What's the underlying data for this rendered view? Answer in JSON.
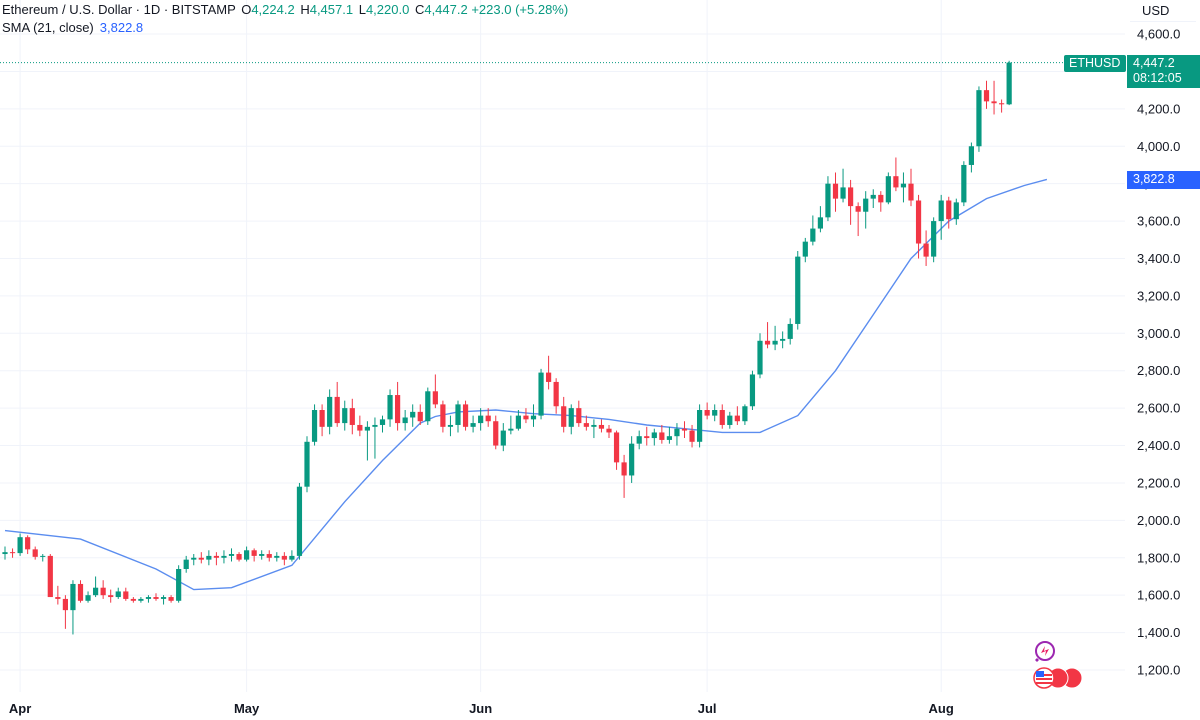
{
  "header": {
    "symbol": "Ethereum / U.S. Dollar · 1D · BITSTAMP",
    "open_label": "O",
    "open": "4,224.2",
    "high_label": "H",
    "high": "4,457.1",
    "low_label": "L",
    "low": "4,220.0",
    "close_label": "C",
    "close": "4,447.2",
    "change": "+223.0 (+5.28%)",
    "sma_label": "SMA (21, close)",
    "sma_value": "3,822.8"
  },
  "price_scale": {
    "currency": "USD"
  },
  "tags": {
    "symbol": "ETHUSD",
    "last_price": "4,447.2",
    "countdown": "08:12:05",
    "sma": "3,822.8"
  },
  "colors": {
    "up": "#089981",
    "down": "#f23645",
    "sma": "#5b8def",
    "grid": "#f0f3fa"
  },
  "icons": [
    "sparkle-icon",
    "us-flag-icon"
  ],
  "chart_data": {
    "type": "candlestick",
    "xlabel": "",
    "ylabel": "",
    "ylim": [
      1100,
      4650
    ],
    "y_ticks": [
      "1,200.0",
      "1,400.0",
      "1,600.0",
      "1,800.0",
      "2,000.0",
      "2,200.0",
      "2,400.0",
      "2,600.0",
      "2,800.0",
      "3,000.0",
      "3,200.0",
      "3,400.0",
      "3,600.0",
      "3,800.0",
      "4,000.0",
      "4,200.0",
      "4,400.0",
      "4,600.0"
    ],
    "y_tick_values": [
      1200,
      1400,
      1600,
      1800,
      2000,
      2200,
      2400,
      2600,
      2800,
      3000,
      3200,
      3400,
      3600,
      3800,
      4000,
      4200,
      4400,
      4600
    ],
    "x_ticks": [
      {
        "label": "Apr",
        "date": "2025-04-01"
      },
      {
        "label": "May",
        "date": "2025-05-01"
      },
      {
        "label": "Jun",
        "date": "2025-06-01"
      },
      {
        "label": "Jul",
        "date": "2025-07-01"
      },
      {
        "label": "Aug",
        "date": "2025-08-01"
      }
    ],
    "start_date": "2025-03-30",
    "last_price_line": 4447.2,
    "series": [
      {
        "type": "candles",
        "fields": [
          "open",
          "high",
          "low",
          "close"
        ],
        "values": [
          [
            1820,
            1860,
            1790,
            1830
          ],
          [
            1830,
            1850,
            1800,
            1825
          ],
          [
            1825,
            1930,
            1810,
            1910
          ],
          [
            1910,
            1920,
            1820,
            1845
          ],
          [
            1845,
            1860,
            1790,
            1805
          ],
          [
            1805,
            1820,
            1780,
            1810
          ],
          [
            1810,
            1820,
            1600,
            1590
          ],
          [
            1590,
            1650,
            1550,
            1580
          ],
          [
            1580,
            1600,
            1420,
            1520
          ],
          [
            1520,
            1680,
            1390,
            1660
          ],
          [
            1660,
            1680,
            1560,
            1570
          ],
          [
            1570,
            1620,
            1560,
            1600
          ],
          [
            1600,
            1700,
            1590,
            1640
          ],
          [
            1640,
            1680,
            1580,
            1600
          ],
          [
            1600,
            1630,
            1560,
            1590
          ],
          [
            1590,
            1640,
            1580,
            1620
          ],
          [
            1620,
            1640,
            1570,
            1580
          ],
          [
            1580,
            1590,
            1560,
            1570
          ],
          [
            1570,
            1590,
            1560,
            1580
          ],
          [
            1580,
            1600,
            1560,
            1590
          ],
          [
            1590,
            1610,
            1570,
            1580
          ],
          [
            1580,
            1600,
            1550,
            1590
          ],
          [
            1590,
            1600,
            1560,
            1570
          ],
          [
            1570,
            1760,
            1560,
            1740
          ],
          [
            1740,
            1810,
            1720,
            1790
          ],
          [
            1790,
            1820,
            1760,
            1800
          ],
          [
            1800,
            1830,
            1770,
            1790
          ],
          [
            1790,
            1840,
            1760,
            1810
          ],
          [
            1810,
            1830,
            1760,
            1800
          ],
          [
            1800,
            1840,
            1770,
            1810
          ],
          [
            1810,
            1850,
            1780,
            1820
          ],
          [
            1820,
            1830,
            1780,
            1790
          ],
          [
            1790,
            1860,
            1780,
            1840
          ],
          [
            1840,
            1850,
            1780,
            1810
          ],
          [
            1810,
            1840,
            1790,
            1820
          ],
          [
            1820,
            1840,
            1780,
            1800
          ],
          [
            1800,
            1830,
            1780,
            1810
          ],
          [
            1810,
            1830,
            1760,
            1790
          ],
          [
            1790,
            1840,
            1780,
            1810
          ],
          [
            1810,
            2200,
            1790,
            2180
          ],
          [
            2180,
            2450,
            2150,
            2420
          ],
          [
            2420,
            2620,
            2400,
            2590
          ],
          [
            2590,
            2620,
            2450,
            2500
          ],
          [
            2500,
            2700,
            2460,
            2660
          ],
          [
            2660,
            2740,
            2500,
            2520
          ],
          [
            2520,
            2640,
            2480,
            2600
          ],
          [
            2600,
            2650,
            2460,
            2510
          ],
          [
            2510,
            2560,
            2450,
            2480
          ],
          [
            2480,
            2530,
            2320,
            2500
          ],
          [
            2500,
            2550,
            2330,
            2510
          ],
          [
            2510,
            2560,
            2470,
            2540
          ],
          [
            2540,
            2700,
            2500,
            2670
          ],
          [
            2670,
            2740,
            2480,
            2520
          ],
          [
            2520,
            2590,
            2480,
            2550
          ],
          [
            2550,
            2620,
            2500,
            2580
          ],
          [
            2580,
            2620,
            2510,
            2530
          ],
          [
            2530,
            2710,
            2510,
            2690
          ],
          [
            2690,
            2780,
            2600,
            2620
          ],
          [
            2620,
            2640,
            2470,
            2500
          ],
          [
            2500,
            2560,
            2450,
            2510
          ],
          [
            2510,
            2640,
            2470,
            2620
          ],
          [
            2620,
            2640,
            2480,
            2500
          ],
          [
            2500,
            2560,
            2470,
            2520
          ],
          [
            2520,
            2600,
            2480,
            2560
          ],
          [
            2560,
            2600,
            2500,
            2530
          ],
          [
            2530,
            2560,
            2380,
            2400
          ],
          [
            2400,
            2520,
            2370,
            2480
          ],
          [
            2480,
            2560,
            2460,
            2490
          ],
          [
            2490,
            2590,
            2480,
            2560
          ],
          [
            2560,
            2600,
            2520,
            2540
          ],
          [
            2540,
            2620,
            2500,
            2560
          ],
          [
            2560,
            2810,
            2540,
            2790
          ],
          [
            2790,
            2880,
            2700,
            2740
          ],
          [
            2740,
            2760,
            2570,
            2610
          ],
          [
            2610,
            2660,
            2470,
            2500
          ],
          [
            2500,
            2620,
            2460,
            2600
          ],
          [
            2600,
            2640,
            2500,
            2520
          ],
          [
            2520,
            2560,
            2480,
            2500
          ],
          [
            2500,
            2540,
            2440,
            2510
          ],
          [
            2510,
            2540,
            2470,
            2490
          ],
          [
            2490,
            2510,
            2440,
            2470
          ],
          [
            2470,
            2480,
            2270,
            2310
          ],
          [
            2310,
            2350,
            2120,
            2240
          ],
          [
            2240,
            2450,
            2200,
            2410
          ],
          [
            2410,
            2480,
            2380,
            2450
          ],
          [
            2450,
            2500,
            2400,
            2440
          ],
          [
            2440,
            2490,
            2400,
            2470
          ],
          [
            2470,
            2510,
            2410,
            2430
          ],
          [
            2430,
            2500,
            2410,
            2450
          ],
          [
            2450,
            2520,
            2400,
            2490
          ],
          [
            2490,
            2530,
            2440,
            2480
          ],
          [
            2480,
            2510,
            2390,
            2420
          ],
          [
            2420,
            2620,
            2390,
            2590
          ],
          [
            2590,
            2630,
            2540,
            2560
          ],
          [
            2560,
            2620,
            2530,
            2590
          ],
          [
            2590,
            2620,
            2490,
            2510
          ],
          [
            2510,
            2580,
            2490,
            2560
          ],
          [
            2560,
            2610,
            2510,
            2530
          ],
          [
            2530,
            2620,
            2510,
            2610
          ],
          [
            2610,
            2800,
            2590,
            2780
          ],
          [
            2780,
            3000,
            2760,
            2960
          ],
          [
            2960,
            3060,
            2920,
            2940
          ],
          [
            2940,
            3040,
            2910,
            2960
          ],
          [
            2960,
            3010,
            2920,
            2970
          ],
          [
            2970,
            3080,
            2940,
            3050
          ],
          [
            3050,
            3440,
            3020,
            3410
          ],
          [
            3410,
            3510,
            3380,
            3490
          ],
          [
            3490,
            3630,
            3470,
            3560
          ],
          [
            3560,
            3680,
            3540,
            3620
          ],
          [
            3620,
            3840,
            3600,
            3800
          ],
          [
            3800,
            3860,
            3650,
            3720
          ],
          [
            3720,
            3880,
            3700,
            3780
          ],
          [
            3780,
            3820,
            3580,
            3680
          ],
          [
            3680,
            3700,
            3520,
            3650
          ],
          [
            3650,
            3760,
            3560,
            3720
          ],
          [
            3720,
            3770,
            3670,
            3740
          ],
          [
            3740,
            3760,
            3650,
            3700
          ],
          [
            3700,
            3860,
            3690,
            3840
          ],
          [
            3840,
            3940,
            3760,
            3780
          ],
          [
            3780,
            3860,
            3700,
            3800
          ],
          [
            3800,
            3880,
            3680,
            3710
          ],
          [
            3710,
            3740,
            3400,
            3480
          ],
          [
            3480,
            3550,
            3360,
            3410
          ],
          [
            3410,
            3620,
            3380,
            3600
          ],
          [
            3600,
            3740,
            3500,
            3710
          ],
          [
            3710,
            3730,
            3560,
            3610
          ],
          [
            3610,
            3720,
            3580,
            3700
          ],
          [
            3700,
            3920,
            3680,
            3900
          ],
          [
            3900,
            4020,
            3860,
            4000
          ],
          [
            4000,
            4320,
            3970,
            4300
          ],
          [
            4300,
            4350,
            4200,
            4240
          ],
          [
            4240,
            4350,
            4170,
            4230
          ],
          [
            4230,
            4250,
            4180,
            4224.2
          ],
          [
            4224.2,
            4457.1,
            4220,
            4447.2
          ]
        ]
      },
      {
        "name": "SMA (21, close)",
        "type": "line",
        "x": [
          0,
          10,
          20,
          25,
          30,
          38,
          45,
          50,
          55,
          57,
          60,
          65,
          70,
          75,
          80,
          85,
          90,
          95,
          100,
          105,
          110,
          115,
          120,
          125,
          130,
          135,
          138
        ],
        "values": [
          1945,
          1900,
          1740,
          1630,
          1640,
          1760,
          2100,
          2320,
          2520,
          2555,
          2580,
          2590,
          2570,
          2560,
          2540,
          2510,
          2490,
          2470,
          2470,
          2560,
          2800,
          3100,
          3400,
          3600,
          3720,
          3790,
          3822.8
        ]
      }
    ]
  }
}
